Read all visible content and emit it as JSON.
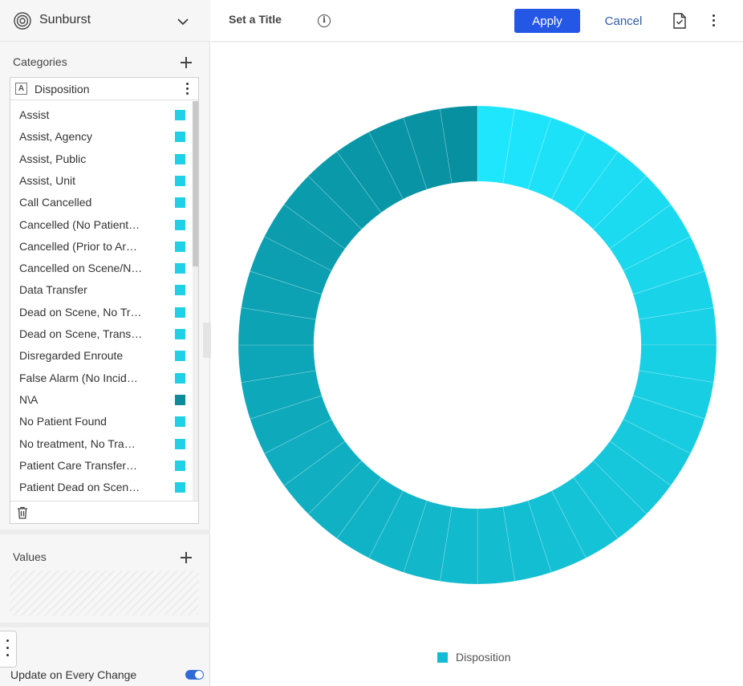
{
  "viz_select": {
    "label": "Sunburst",
    "icon": "sunburst-icon"
  },
  "categories": {
    "title": "Categories",
    "field": {
      "type_badge": "A",
      "name": "Disposition"
    },
    "items": [
      {
        "label": "Assist",
        "color": "#1fd0e6"
      },
      {
        "label": "Assist, Agency",
        "color": "#1fd0e6"
      },
      {
        "label": "Assist, Public",
        "color": "#1fd0e6"
      },
      {
        "label": "Assist, Unit",
        "color": "#1fd0e6"
      },
      {
        "label": "Call Cancelled",
        "color": "#1fd0e6"
      },
      {
        "label": "Cancelled (No Patient…",
        "color": "#1fd0e6"
      },
      {
        "label": "Cancelled (Prior to Ar…",
        "color": "#1fd0e6"
      },
      {
        "label": "Cancelled on Scene/N…",
        "color": "#1fd0e6"
      },
      {
        "label": "Data Transfer",
        "color": "#1fd0e6"
      },
      {
        "label": "Dead on Scene, No Tr…",
        "color": "#1fd0e6"
      },
      {
        "label": "Dead on Scene, Trans…",
        "color": "#1fd0e6"
      },
      {
        "label": "Disregarded Enroute",
        "color": "#1fd0e6"
      },
      {
        "label": "False Alarm (No Incid…",
        "color": "#1fd0e6"
      },
      {
        "label": "N\\A",
        "color": "#0e8a9b"
      },
      {
        "label": "No Patient Found",
        "color": "#1fd0e6"
      },
      {
        "label": "No treatment, No Tra…",
        "color": "#1fd0e6"
      },
      {
        "label": "Patient Care Transfer…",
        "color": "#1fd0e6"
      },
      {
        "label": "Patient Dead on Scen…",
        "color": "#1fd0e6"
      }
    ]
  },
  "values": {
    "title": "Values"
  },
  "update_on_change": {
    "label": "Update on Every Change",
    "enabled": true
  },
  "toolbar": {
    "title_placeholder": "Set a Title",
    "apply_label": "Apply",
    "cancel_label": "Cancel"
  },
  "chart_data": {
    "type": "pie",
    "style": "donut",
    "segments": 40,
    "legend": [
      "Disposition"
    ],
    "legend_position": "bottom",
    "colors": {
      "start": "#1ee6fc",
      "end": "#0790a0"
    }
  }
}
